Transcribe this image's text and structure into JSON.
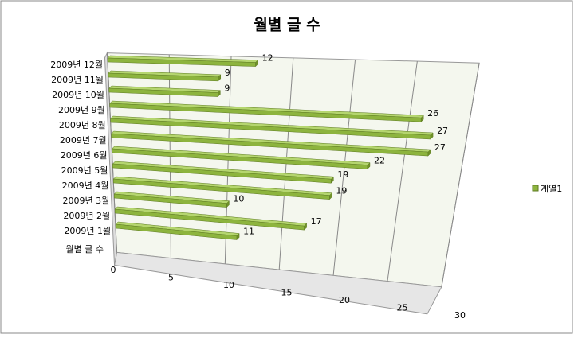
{
  "chart_data": {
    "type": "bar3d",
    "title": "월별 글 수",
    "categories": [
      "월별 글 수",
      "2009년 1월",
      "2009년 2월",
      "2009년 3월",
      "2009년 4월",
      "2009년 5월",
      "2009년 6월",
      "2009년 7월",
      "2009년 8월",
      "2009년 9월",
      "2009년 10월",
      "2009년 11월",
      "2009년 12월"
    ],
    "series": [
      {
        "name": "계열1",
        "color": "#8db43e",
        "values": [
          null,
          11,
          17,
          10,
          19,
          19,
          22,
          27,
          27,
          26,
          9,
          9,
          12
        ]
      }
    ],
    "xlim": [
      0,
      30
    ],
    "xticks": [
      0,
      5,
      10,
      15,
      20,
      25,
      30
    ],
    "grid": true,
    "legend": "right"
  }
}
